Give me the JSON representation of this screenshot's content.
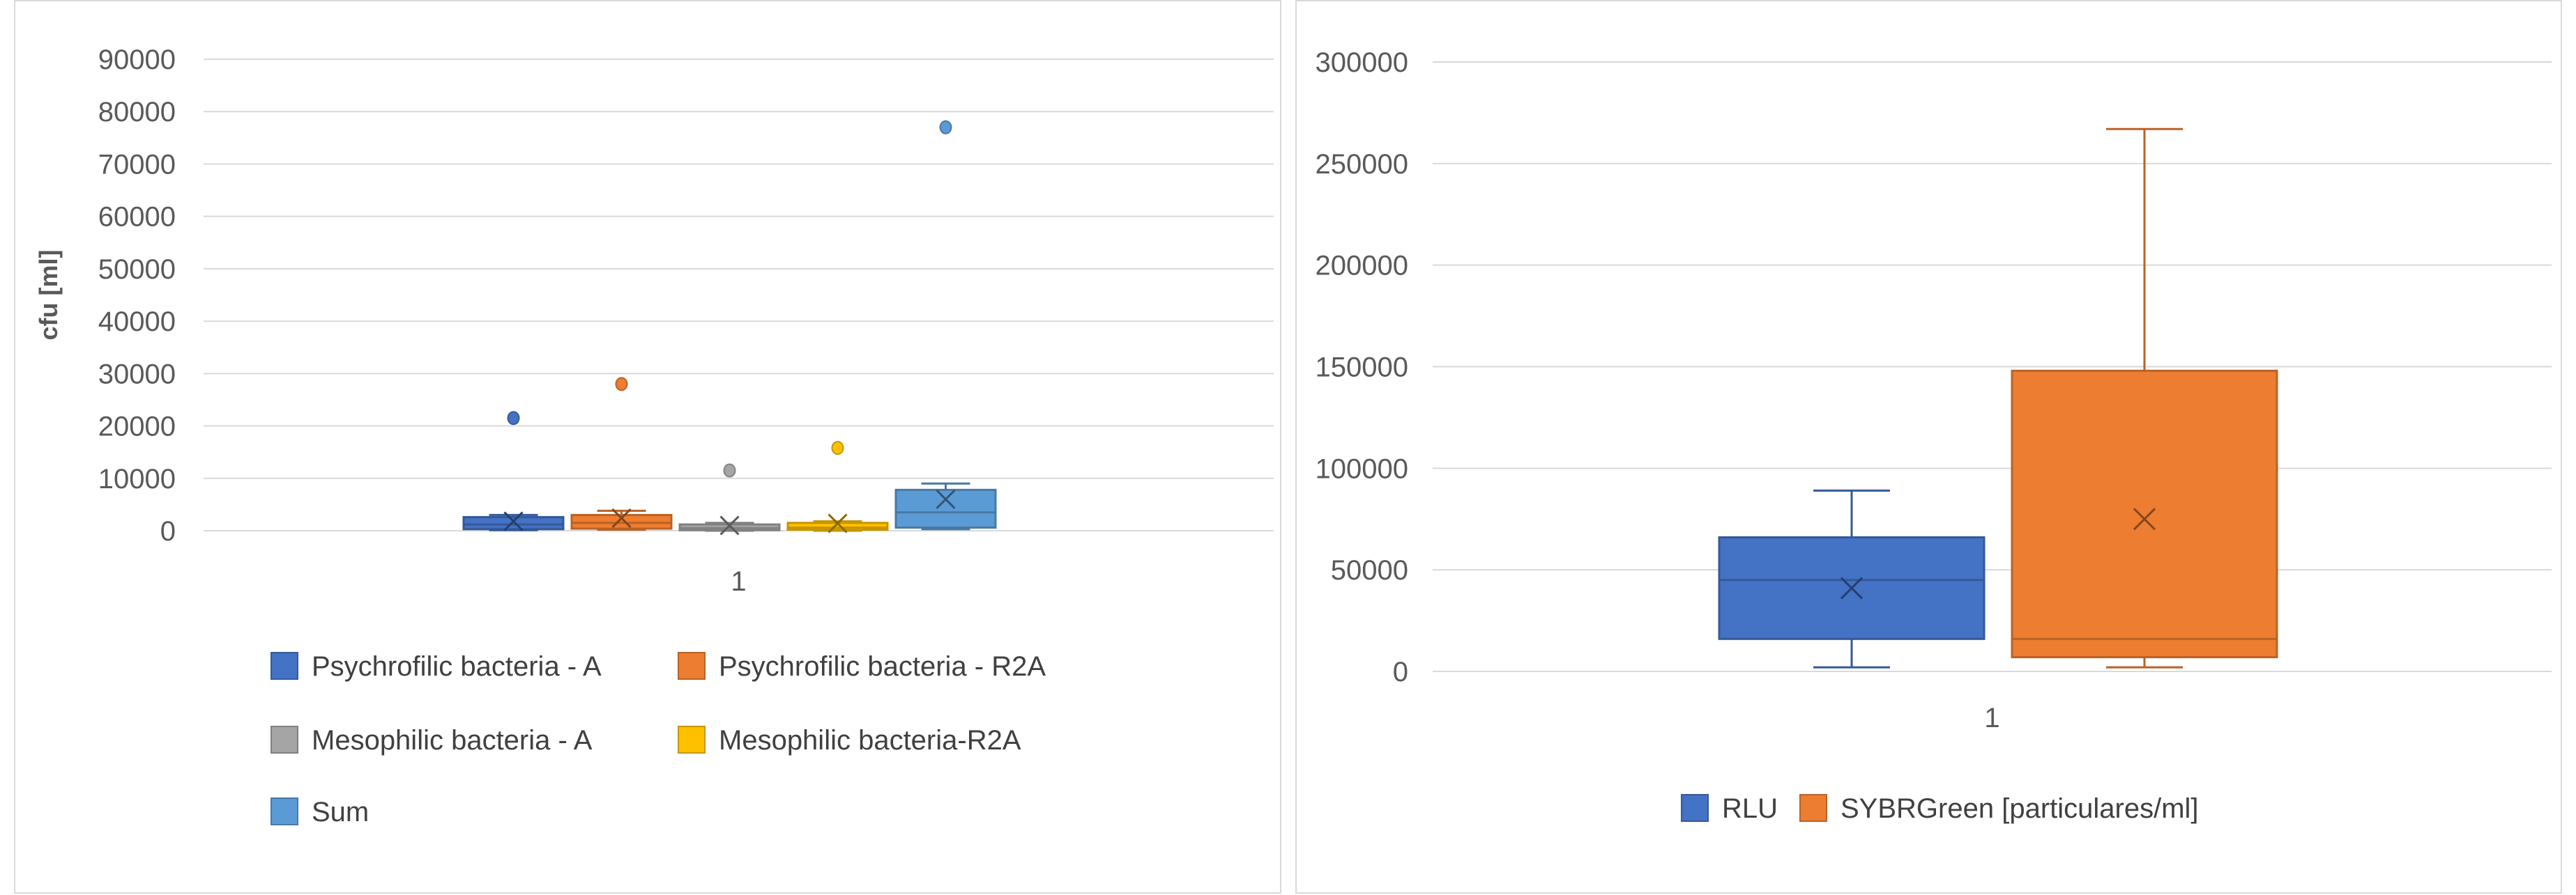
{
  "chart_data": [
    {
      "type": "boxplot",
      "title": "",
      "xlabel": "",
      "ylabel": "cfu [ml]",
      "categories": [
        "1"
      ],
      "ylim": [
        0,
        90000
      ],
      "yticks": [
        0,
        10000,
        20000,
        30000,
        40000,
        50000,
        60000,
        70000,
        80000,
        90000
      ],
      "grid": true,
      "legend_position": "bottom",
      "series": [
        {
          "name": "Psychrofilic bacteria - A",
          "color": "#4472c4",
          "min": 100,
          "q1": 300,
          "median": 1200,
          "q3": 2600,
          "max": 3000,
          "mean": 1800,
          "outliers": [
            21500
          ]
        },
        {
          "name": "Psychrofilic bacteria - R2A",
          "color": "#ed7d31",
          "min": 200,
          "q1": 400,
          "median": 1500,
          "q3": 3000,
          "max": 3800,
          "mean": 2400,
          "outliers": [
            28000
          ]
        },
        {
          "name": "Mesophilic bacteria - A",
          "color": "#a5a5a5",
          "min": 0,
          "q1": 100,
          "median": 500,
          "q3": 1200,
          "max": 1500,
          "mean": 1000,
          "outliers": [
            11500
          ]
        },
        {
          "name": "Mesophilic bacteria-R2A",
          "color": "#ffc000",
          "min": 0,
          "q1": 200,
          "median": 600,
          "q3": 1500,
          "max": 1800,
          "mean": 1400,
          "outliers": [
            15800
          ]
        },
        {
          "name": "Sum",
          "color": "#5b9bd5",
          "min": 300,
          "q1": 600,
          "median": 3500,
          "q3": 7800,
          "max": 9000,
          "mean": 6000,
          "outliers": [
            77000
          ]
        }
      ]
    },
    {
      "type": "boxplot",
      "title": "",
      "xlabel": "",
      "ylabel": "",
      "categories": [
        "1"
      ],
      "ylim": [
        0,
        300000
      ],
      "yticks": [
        0,
        50000,
        100000,
        150000,
        200000,
        250000,
        300000
      ],
      "grid": true,
      "legend_position": "bottom",
      "series": [
        {
          "name": "RLU",
          "color": "#4472c4",
          "min": 2000,
          "q1": 16000,
          "median": 45000,
          "q3": 66000,
          "max": 89000,
          "mean": 41000,
          "outliers": []
        },
        {
          "name": "SYBRGreen [particulares/ml]",
          "color": "#ed7d31",
          "min": 2000,
          "q1": 7000,
          "median": 16000,
          "q3": 148000,
          "max": 267000,
          "mean": 75000,
          "outliers": []
        }
      ]
    }
  ]
}
